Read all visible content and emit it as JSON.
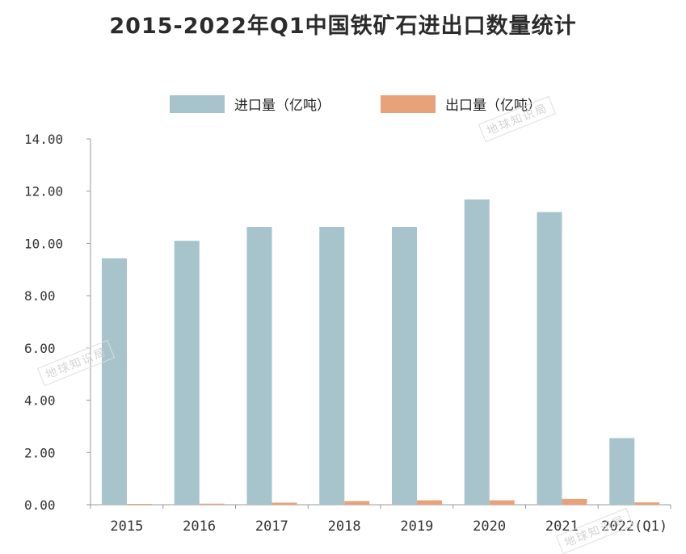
{
  "chart_data": {
    "type": "bar",
    "title": "2015-2022年Q1中国铁矿石进出口数量统计",
    "categories": [
      "2015",
      "2016",
      "2017",
      "2018",
      "2019",
      "2020",
      "2021",
      "2022(Q1)"
    ],
    "series": [
      {
        "name": "进口量（亿吨）",
        "color": "#a7c3cb",
        "values": [
          9.43,
          10.1,
          10.63,
          10.63,
          10.63,
          11.68,
          11.2,
          2.55
        ]
      },
      {
        "name": "出口量（亿吨）",
        "color": "#e8a27a",
        "values": [
          0.02,
          0.04,
          0.08,
          0.14,
          0.17,
          0.17,
          0.22,
          0.09
        ]
      }
    ],
    "yticks": [
      "0.00",
      "2.00",
      "4.00",
      "6.00",
      "8.00",
      "10.00",
      "12.00",
      "14.00"
    ],
    "ylim": [
      0,
      14
    ],
    "xlabel": "",
    "ylabel": "",
    "grid": false,
    "legend": "top"
  },
  "watermark": {
    "text": "地球知识局"
  }
}
